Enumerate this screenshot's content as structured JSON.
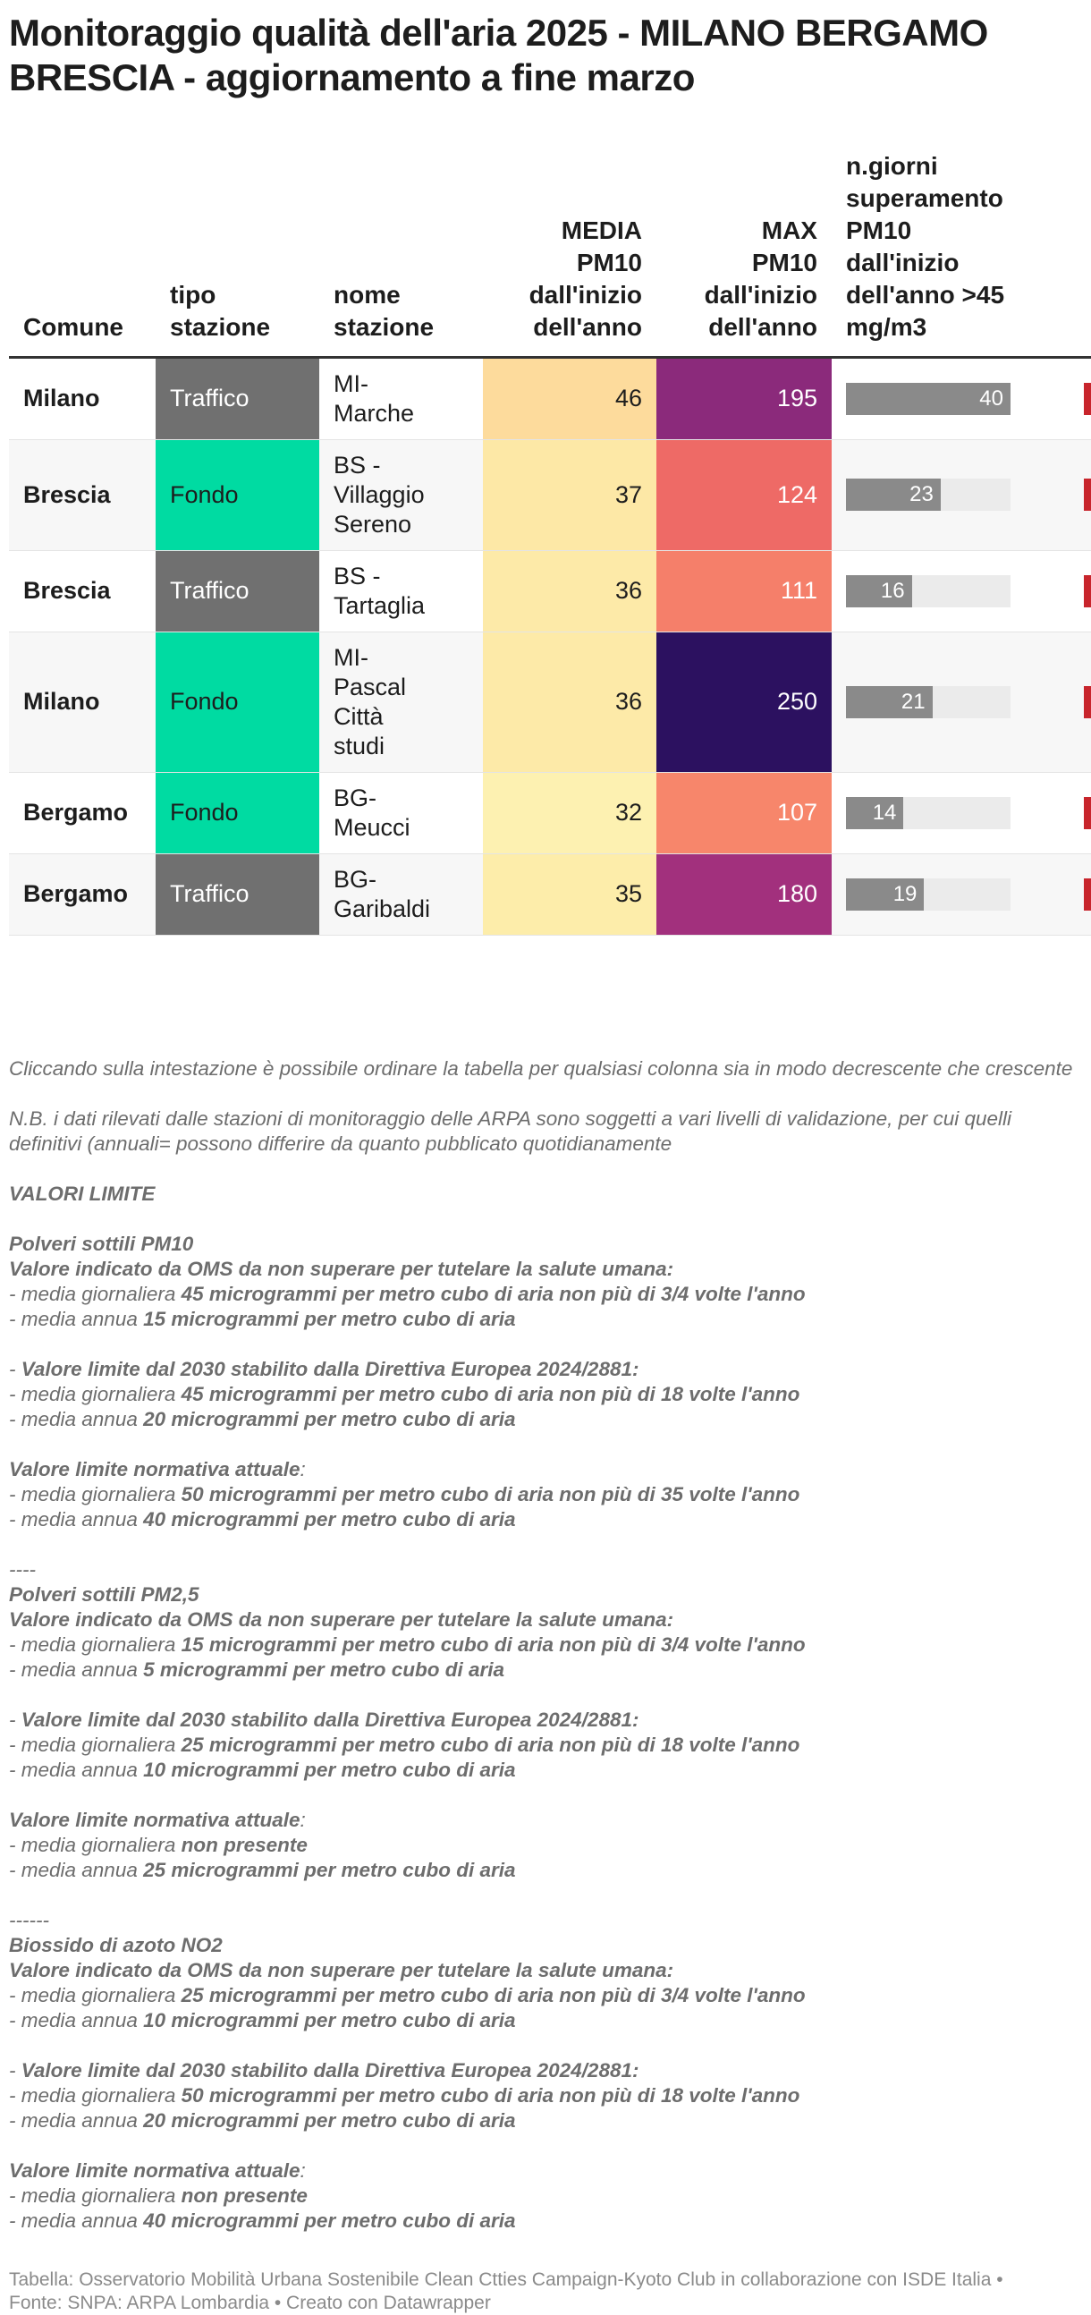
{
  "header": {
    "title": "Monitoraggio qualità dell'aria 2025 - MILANO BERGAMO BRESCIA - aggiornamento a fine marzo"
  },
  "table": {
    "columns": [
      {
        "lines": [
          "Comune"
        ]
      },
      {
        "lines": [
          "tipo",
          "stazione"
        ]
      },
      {
        "lines": [
          "nome",
          "stazione"
        ]
      },
      {
        "lines": [
          "MEDIA",
          "PM10",
          "dall'inizio",
          "dell'anno"
        ]
      },
      {
        "lines": [
          "MAX",
          "PM10",
          "dall'inizio",
          "dell'anno"
        ]
      },
      {
        "lines": [
          "n.giorni",
          "superamento",
          "PM10",
          "dall'inizio",
          "dell'anno >45",
          "mg/m3"
        ]
      }
    ],
    "bar_color": "#8a8a8a",
    "bar_track_color": "#ebebeb",
    "bar_range": [
      0,
      40
    ],
    "rows": [
      {
        "comune": "Milano",
        "tipo": "Traffico",
        "tipo_color": "#707070",
        "nome": [
          "MI-",
          "Marche"
        ],
        "media": 46,
        "media_color": "#fddb9c",
        "max": 195,
        "max_color": "#8b2a7b",
        "giorni": 40
      },
      {
        "comune": "Brescia",
        "tipo": "Fondo",
        "tipo_color": "#00dba2",
        "nome": [
          "BS -",
          "Villaggio",
          "Sereno"
        ],
        "media": 37,
        "media_color": "#fde8a6",
        "max": 124,
        "max_color": "#ee6a66",
        "giorni": 23
      },
      {
        "comune": "Brescia",
        "tipo": "Traffico",
        "tipo_color": "#707070",
        "nome": [
          "BS -",
          "Tartaglia"
        ],
        "media": 36,
        "media_color": "#fdeaa8",
        "max": 111,
        "max_color": "#f57f6a",
        "giorni": 16
      },
      {
        "comune": "Milano",
        "tipo": "Fondo",
        "tipo_color": "#00dba2",
        "nome": [
          "MI-",
          "Pascal",
          "Città",
          "studi"
        ],
        "media": 36,
        "media_color": "#fdeaa8",
        "max": 250,
        "max_color": "#2c1160",
        "giorni": 21
      },
      {
        "comune": "Bergamo",
        "tipo": "Fondo",
        "tipo_color": "#00dba2",
        "nome": [
          "BG-",
          "Meucci"
        ],
        "media": 32,
        "media_color": "#fdf1b1",
        "max": 107,
        "max_color": "#f7866b",
        "giorni": 14
      },
      {
        "comune": "Bergamo",
        "tipo": "Traffico",
        "tipo_color": "#707070",
        "nome": [
          "BG-",
          "Garibaldi"
        ],
        "media": 35,
        "media_color": "#fdedaa",
        "max": 180,
        "max_color": "#a2307d",
        "giorni": 19
      }
    ]
  },
  "notes": [
    [
      [
        {
          "t": "Cliccando sulla intestazione è possibile ordinare la tabella per qualsiasi colonna sia in modo decrescente che crescente"
        }
      ]
    ],
    [
      [
        {
          "t": "N.B. i dati rilevati dalle stazioni di monitoraggio delle ARPA sono soggetti a vari livelli di validazione, per cui quelli definitivi (annuali= possono differire da quanto pubblicato quotidianamente"
        }
      ]
    ],
    [
      [
        {
          "t": "VALORI LIMITE",
          "b": true
        }
      ]
    ],
    [
      [
        {
          "t": "Polveri sottili PM10",
          "b": true
        }
      ],
      [
        {
          "t": "Valore indicato da OMS da non superare per tutelare la salute umana:",
          "b": true
        }
      ],
      [
        {
          "t": "- media giornaliera "
        },
        {
          "t": "45 microgrammi per metro cubo di aria non più di 3/4 volte l'anno",
          "b": true
        }
      ],
      [
        {
          "t": "- media annua "
        },
        {
          "t": "15 microgrammi per metro cubo di aria",
          "b": true
        }
      ]
    ],
    [
      [
        {
          "t": "- "
        },
        {
          "t": "Valore limite dal 2030 stabilito dalla Direttiva Europea 2024/2881:",
          "b": true
        }
      ],
      [
        {
          "t": "- media giornaliera "
        },
        {
          "t": "45 microgrammi per metro cubo di aria non più di 18 volte l'anno",
          "b": true
        }
      ],
      [
        {
          "t": "- media annua "
        },
        {
          "t": "20 microgrammi per metro cubo di aria",
          "b": true
        }
      ]
    ],
    [
      [
        {
          "t": "Valore limite normativa attuale",
          "b": true
        },
        {
          "t": ":"
        }
      ],
      [
        {
          "t": "- media giornaliera "
        },
        {
          "t": "50 microgrammi per metro cubo di aria non più di 35 volte l'anno",
          "b": true
        }
      ],
      [
        {
          "t": "- media annua "
        },
        {
          "t": "40 microgrammi per metro cubo di aria",
          "b": true
        }
      ]
    ],
    [
      [
        {
          "t": "----"
        }
      ],
      [
        {
          "t": "Polveri sottili PM2,5",
          "b": true
        }
      ],
      [
        {
          "t": "Valore indicato da OMS da non superare per tutelare la salute umana:",
          "b": true
        }
      ],
      [
        {
          "t": "- media giornaliera "
        },
        {
          "t": "15 microgrammi per metro cubo di aria non più di 3/4 volte l'anno",
          "b": true
        }
      ],
      [
        {
          "t": "- media annua "
        },
        {
          "t": "5 microgrammi per metro cubo di aria",
          "b": true
        }
      ]
    ],
    [
      [
        {
          "t": "- "
        },
        {
          "t": "Valore limite dal 2030 stabilito dalla Direttiva Europea 2024/2881:",
          "b": true
        }
      ],
      [
        {
          "t": "- media giornaliera "
        },
        {
          "t": "25 microgrammi per metro cubo di aria non più di 18 volte l'anno",
          "b": true
        }
      ],
      [
        {
          "t": "- media annua "
        },
        {
          "t": "10 microgrammi per metro cubo di aria",
          "b": true
        }
      ]
    ],
    [
      [
        {
          "t": "Valore limite normativa attuale",
          "b": true
        },
        {
          "t": ":"
        }
      ],
      [
        {
          "t": "- media giornaliera "
        },
        {
          "t": "non presente",
          "b": true
        }
      ],
      [
        {
          "t": "- media annua "
        },
        {
          "t": "25 microgrammi per metro cubo di aria",
          "b": true
        }
      ]
    ],
    [
      [
        {
          "t": "------"
        }
      ],
      [
        {
          "t": "Biossido di azoto NO2",
          "b": true
        }
      ],
      [
        {
          "t": "Valore indicato da OMS da non superare per tutelare la salute umana:",
          "b": true
        }
      ],
      [
        {
          "t": "- media giornaliera "
        },
        {
          "t": "25 microgrammi per metro cubo di aria non più di 3/4 volte l'anno",
          "b": true
        }
      ],
      [
        {
          "t": "- media annua "
        },
        {
          "t": "10 microgrammi per metro cubo di aria",
          "b": true
        }
      ]
    ],
    [
      [
        {
          "t": "- "
        },
        {
          "t": "Valore limite dal 2030 stabilito dalla Direttiva Europea 2024/2881:",
          "b": true
        }
      ],
      [
        {
          "t": "- media giornaliera "
        },
        {
          "t": "50 microgrammi per metro cubo di aria non più di 18 volte l'anno",
          "b": true
        }
      ],
      [
        {
          "t": "- media annua "
        },
        {
          "t": "20 microgrammi per metro cubo di aria",
          "b": true
        }
      ]
    ],
    [
      [
        {
          "t": "Valore limite normativa attuale",
          "b": true
        },
        {
          "t": ":"
        }
      ],
      [
        {
          "t": "- media giornaliera "
        },
        {
          "t": "non presente",
          "b": true
        }
      ],
      [
        {
          "t": "- media annua "
        },
        {
          "t": "40 microgrammi per metro cubo di aria",
          "b": true
        }
      ]
    ]
  ],
  "footer": {
    "lines": [
      "Tabella: Osservatorio Mobilità Urbana Sostenibile Clean Ctties Campaign-Kyoto Club in collaborazione con ISDE Italia •",
      "Fonte: SNPA: ARPA Lombardia • Creato con Datawrapper"
    ]
  }
}
